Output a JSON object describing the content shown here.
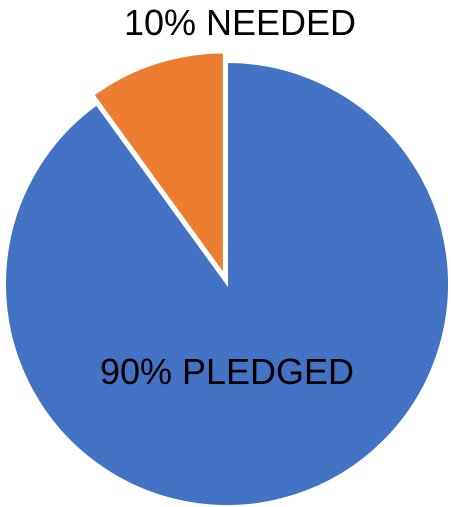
{
  "chart_data": {
    "type": "pie",
    "categories": [
      "PLEDGED",
      "NEEDED"
    ],
    "values": [
      90,
      10
    ],
    "labels": [
      "90% PLEDGED",
      "10% NEEDED"
    ],
    "colors": [
      "#4472C4",
      "#ED7D31"
    ],
    "exploded": [
      false,
      true
    ],
    "title": "",
    "legend": "none"
  }
}
